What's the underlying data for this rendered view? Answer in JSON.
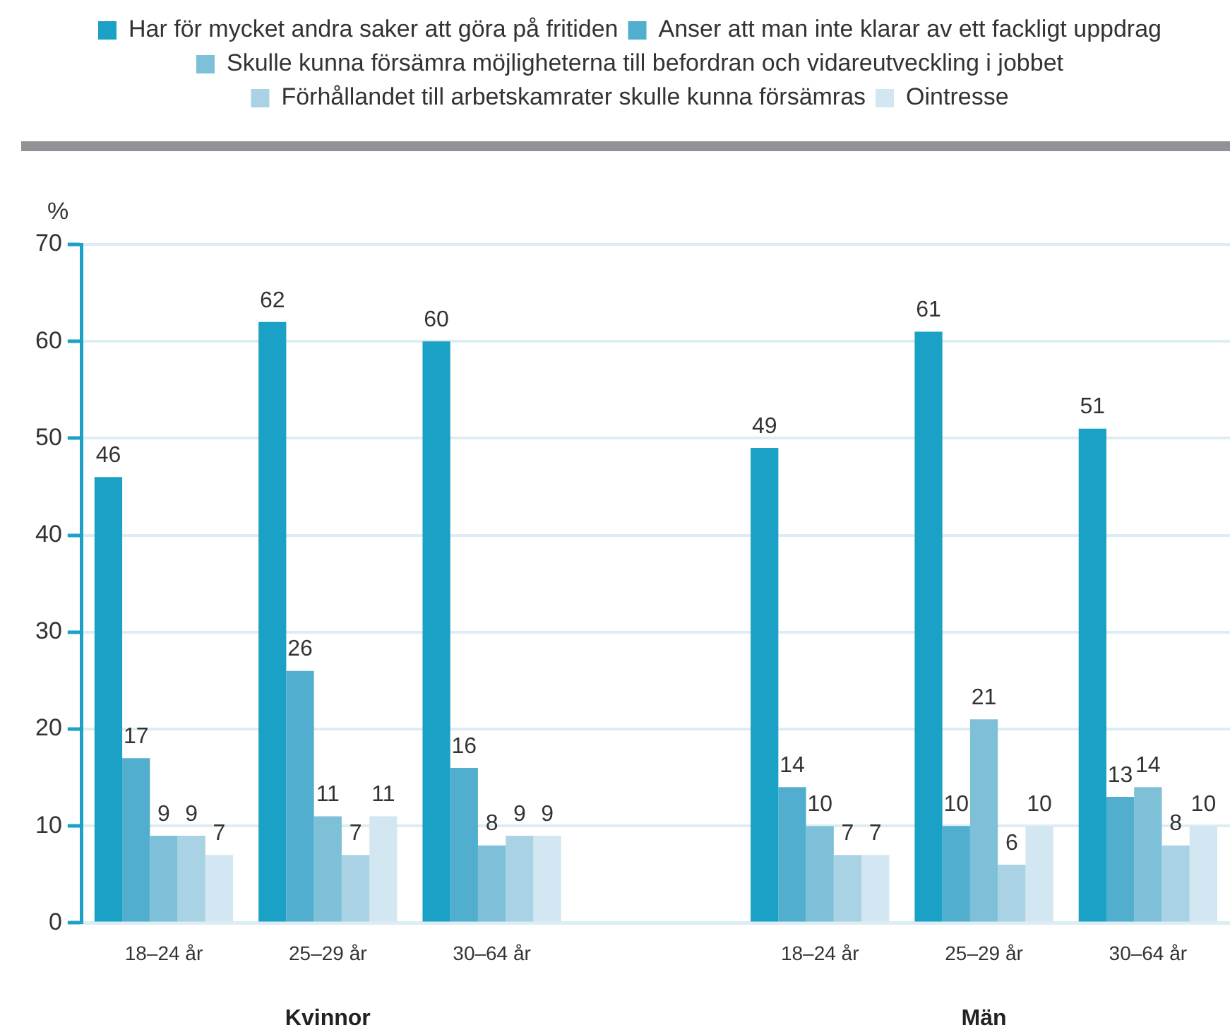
{
  "chart_data": {
    "type": "bar",
    "categories": [
      "18–24 år",
      "25–29 år",
      "30–64 år",
      null,
      "18–24 år",
      "25–29 år",
      "30–64 år"
    ],
    "series": [
      {
        "name": "Har för mycket andra saker att göra på fritiden",
        "color": "#1ba1c6",
        "values": [
          46,
          62,
          60,
          null,
          49,
          61,
          51
        ]
      },
      {
        "name": "Anser att man inte klarar av ett fackligt uppdrag",
        "color": "#52aecf",
        "values": [
          17,
          26,
          16,
          null,
          14,
          10,
          13
        ]
      },
      {
        "name": "Skulle kunna försämra möjligheterna till befordran och vidareutveckling i jobbet",
        "color": "#7fc0d9",
        "values": [
          9,
          11,
          8,
          null,
          10,
          21,
          14
        ]
      },
      {
        "name": "Förhållandet till arbetskamrater skulle kunna försämras",
        "color": "#a9d3e4",
        "values": [
          9,
          7,
          9,
          null,
          7,
          6,
          8
        ]
      },
      {
        "name": "Ointresse",
        "color": "#d2e7f1",
        "values": [
          7,
          11,
          9,
          null,
          7,
          10,
          10
        ]
      }
    ],
    "ylabel": "%",
    "ylim": [
      0,
      70
    ],
    "yticks": [
      0,
      10,
      20,
      30,
      40,
      50,
      60,
      70
    ],
    "grid": "y",
    "legend": "top",
    "data_labels": true,
    "annotations": [
      "Kvinnor",
      "Män"
    ]
  }
}
